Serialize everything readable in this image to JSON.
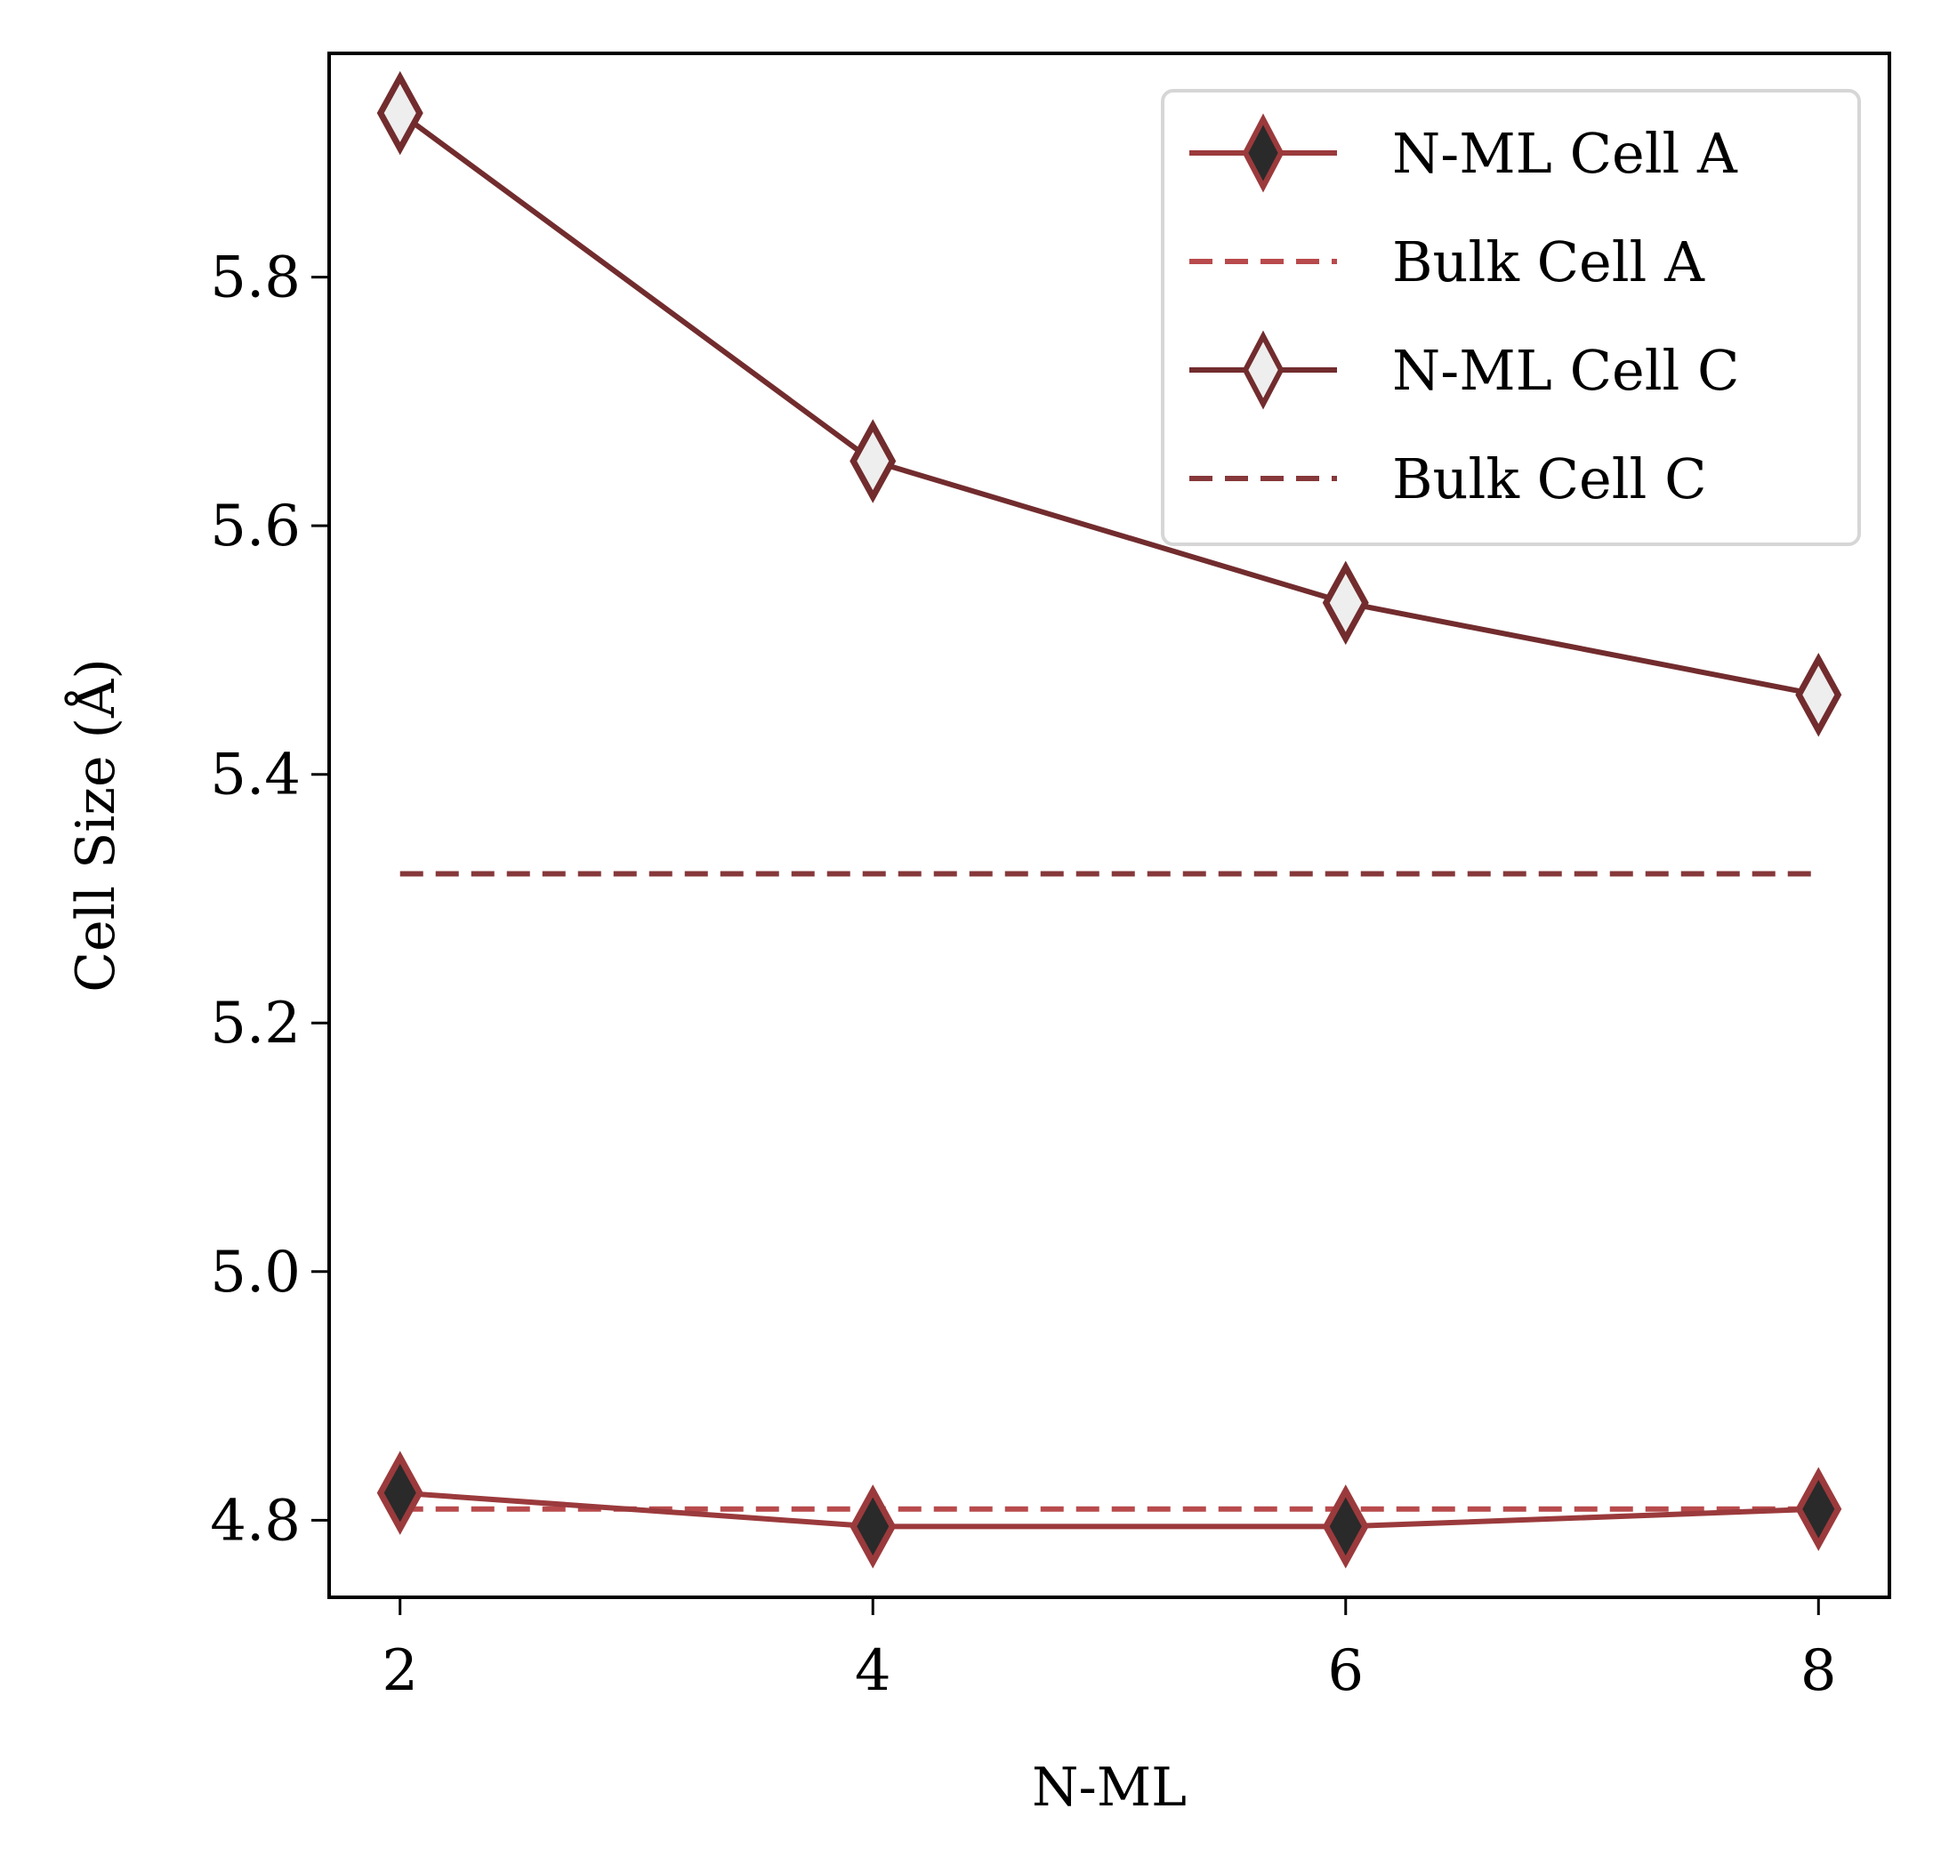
{
  "chart_data": {
    "type": "line",
    "xlabel": "N-ML",
    "ylabel": "Cell Size (Å)",
    "xlim": [
      1.7,
      8.3
    ],
    "ylim": [
      4.738,
      5.98
    ],
    "xticks": [
      2,
      4,
      6,
      8
    ],
    "xtick_labels": [
      "2",
      "4",
      "6",
      "8"
    ],
    "yticks": [
      4.8,
      5.0,
      5.2,
      5.4,
      5.6,
      5.8
    ],
    "ytick_labels": [
      "4.8",
      "5.0",
      "5.2",
      "5.4",
      "5.6",
      "5.8"
    ],
    "grid": false,
    "legend_position": "top-right",
    "series": [
      {
        "name": "N-ML Cell A",
        "style": "solid",
        "marker": "diamond",
        "color": "#9b3a3c",
        "marker_fill": "#2a2a2a",
        "x": [
          2,
          4,
          6,
          8
        ],
        "y": [
          4.822,
          4.795,
          4.795,
          4.809
        ]
      },
      {
        "name": "Bulk Cell A",
        "style": "dashed",
        "marker": "none",
        "color": "#b84a4c",
        "x": [
          2,
          8
        ],
        "y": [
          4.809,
          4.809
        ]
      },
      {
        "name": "N-ML Cell C",
        "style": "solid",
        "marker": "diamond",
        "color": "#722c2e",
        "marker_fill": "#eeeeee",
        "x": [
          2,
          4,
          6,
          8
        ],
        "y": [
          5.932,
          5.652,
          5.538,
          5.464
        ]
      },
      {
        "name": "Bulk Cell C",
        "style": "dashed",
        "marker": "none",
        "color": "#86383a",
        "x": [
          2,
          8
        ],
        "y": [
          5.32,
          5.32
        ]
      }
    ]
  }
}
